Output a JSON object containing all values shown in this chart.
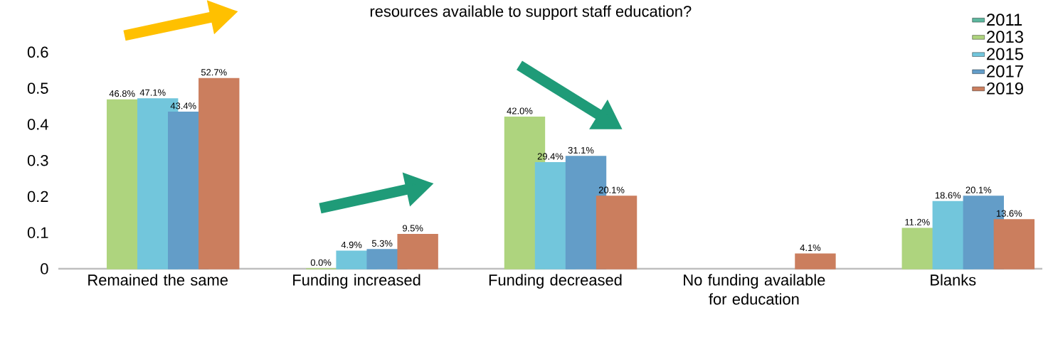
{
  "chart_data": {
    "type": "bar",
    "title": "resources available to  support staff education?",
    "categories": [
      "Remained the same",
      "Funding increased",
      "Funding decreased",
      "No funding available for education",
      "Blanks"
    ],
    "series": [
      {
        "name": "2011",
        "color": "#5db79e",
        "values": [
          null,
          null,
          null,
          null,
          null
        ],
        "value_labels": [
          null,
          null,
          null,
          null,
          null
        ]
      },
      {
        "name": "2013",
        "color": "#aed47e",
        "values": [
          0.468,
          0,
          0.42,
          null,
          0.112
        ],
        "value_labels": [
          "46.8%",
          "0.0%",
          "42.0%",
          null,
          "11.2%"
        ]
      },
      {
        "name": "2015",
        "color": "#72c6dc",
        "values": [
          0.471,
          0.049,
          0.294,
          null,
          0.186
        ],
        "value_labels": [
          "47.1%",
          "4.9%",
          "29.4%",
          null,
          "18.6%"
        ]
      },
      {
        "name": "2017",
        "color": "#639dc8",
        "values": [
          0.434,
          0.053,
          0.311,
          null,
          0.201
        ],
        "value_labels": [
          "43.4%",
          "5.3%",
          "31.1%",
          null,
          "20.1%"
        ]
      },
      {
        "name": "2019",
        "color": "#cb7e5e",
        "values": [
          0.527,
          0.095,
          0.201,
          0.041,
          0.136
        ],
        "value_labels": [
          "52.7%",
          "9.5%",
          "20.1%",
          "4.1%",
          "13.6%"
        ]
      }
    ],
    "ylim": [
      0,
      0.65
    ],
    "yticks": [
      0,
      0.1,
      0.2,
      0.3,
      0.4,
      0.5,
      0.6
    ],
    "legend": "top right"
  }
}
